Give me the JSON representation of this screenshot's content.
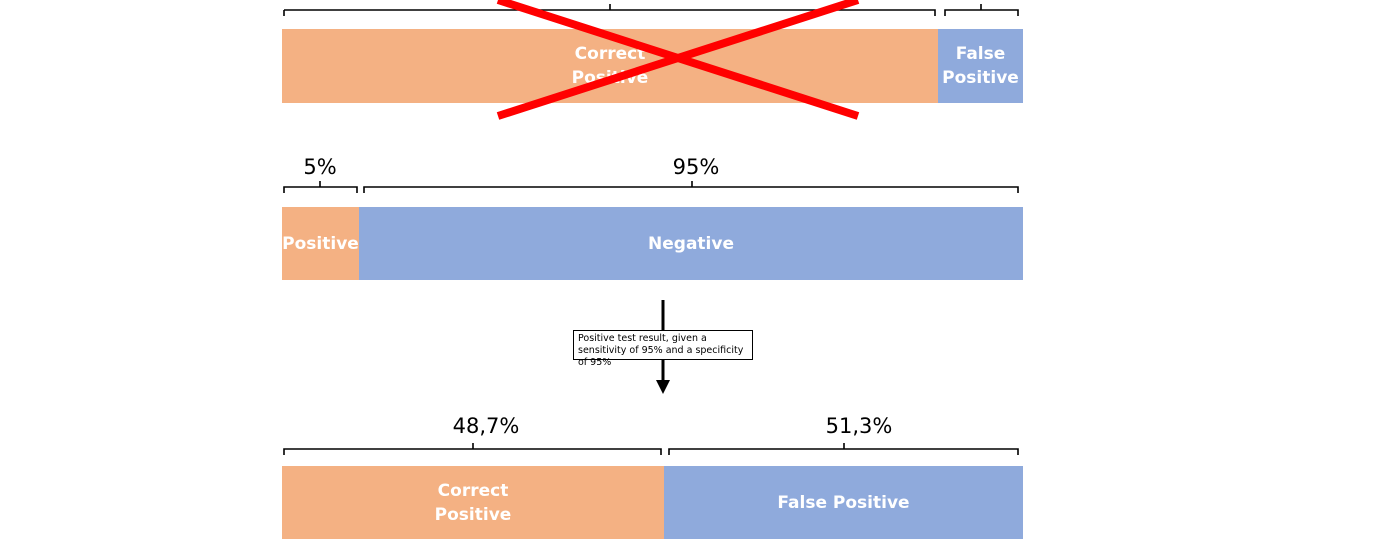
{
  "top_row": {
    "segments": [
      {
        "label": "Correct\nPositive",
        "color": "#f4b183"
      },
      {
        "label": "False\nPositive",
        "color": "#8faadc"
      }
    ],
    "crossed_out": true,
    "cross_color": "#ff0000"
  },
  "middle_row": {
    "percents": [
      "5%",
      "95%"
    ],
    "segments": [
      {
        "label": "Positive",
        "color": "#f4b183"
      },
      {
        "label": "Negative",
        "color": "#8faadc"
      }
    ]
  },
  "arrow_caption": "Positive test result, given a sensitivity of 95% and a specificity of 95%",
  "bottom_row": {
    "percents": [
      "48,7%",
      "51,3%"
    ],
    "segments": [
      {
        "label": "Correct\nPositive",
        "color": "#f4b183"
      },
      {
        "label": "False Positive",
        "color": "#8faadc"
      }
    ]
  }
}
